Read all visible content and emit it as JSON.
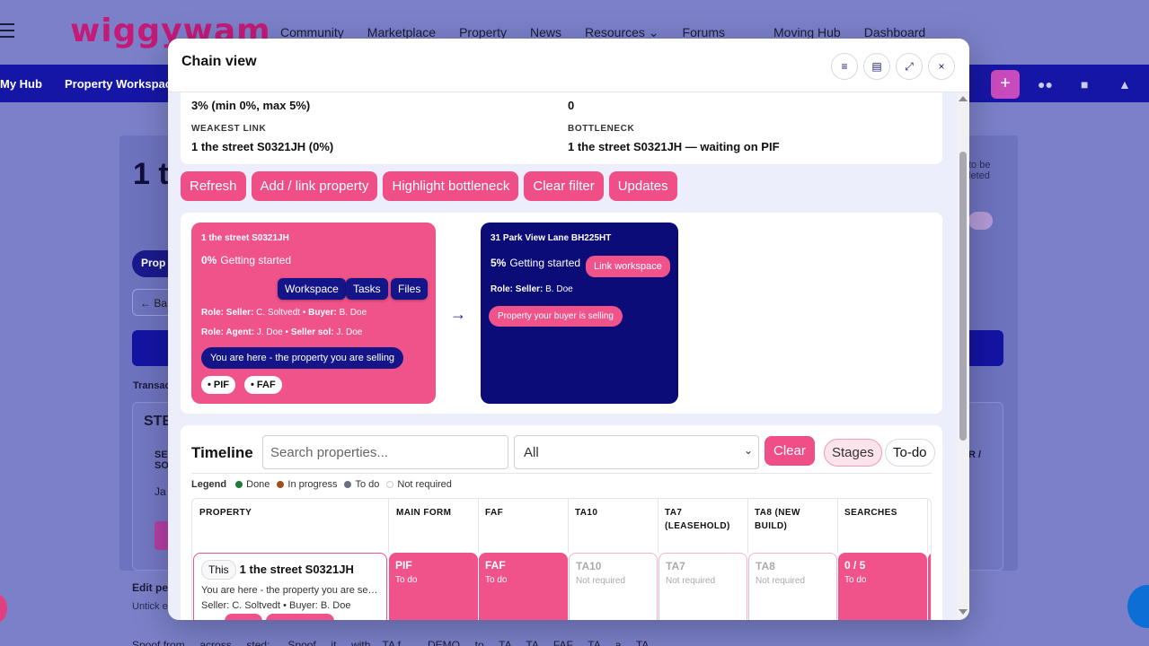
{
  "site": {
    "logo": "wiggywam",
    "nav": [
      "Community",
      "Marketplace",
      "Property",
      "News",
      "Resources ⌄",
      "Forums",
      "Moving Hub",
      "Dashboard"
    ],
    "subnav": [
      "My Hub",
      "Property Workspace"
    ],
    "bg_title": "1 t",
    "bg_pill": "Prop",
    "bg_back": "← Ba",
    "bg_trans": "Transac",
    "bg_stage": "STE",
    "bg_stage_l1": "SE\nSO",
    "bg_stage_l2": "Ja",
    "bg_right": "to be\nleted",
    "bg_right2": "R /",
    "bg_edit": "Edit pe",
    "bg_untick": "Untick e",
    "bg_footer": "Spoof from ... across ... sted: .... Spoof ... it ... with .. TA f.... ... DEMO ... to ... TA ... TA ... FAF ... TA ... a ... TA... ... ..."
  },
  "modal": {
    "title": "Chain view",
    "header_buttons": [
      "menu-icon",
      "print-icon",
      "expand-icon",
      "close-icon"
    ],
    "stats": {
      "top_left": "3% (min 0%, max 5%)",
      "top_right": "0",
      "weakest_label": "WEAKEST LINK",
      "weakest_value": "1 the street S0321JH (0%)",
      "bottleneck_label": "BOTTLENECK",
      "bottleneck_value": "1 the street S0321JH — waiting on PIF"
    },
    "actions": [
      "Refresh",
      "Add / link property",
      "Highlight bottleneck",
      "Clear filter",
      "Updates"
    ],
    "chain": {
      "arrow": "→",
      "node1": {
        "address": "1 the street S0321JH",
        "progress_pct": "0%",
        "progress_text": "Getting started",
        "buttons": [
          "Workspace",
          "Tasks",
          "Files"
        ],
        "role1_label": "Role: Seller:",
        "role1_value": " C. Soltvedt • ",
        "role1b_label": "Buyer:",
        "role1b_value": " B. Doe",
        "role2_label": "Role: Agent:",
        "role2_value": " J. Doe • ",
        "role2b_label": "Seller sol:",
        "role2b_value": " J. Doe",
        "here": "You are here - the property you are selling",
        "tags": [
          "• PIF",
          "• FAF"
        ]
      },
      "node2": {
        "address": "31 Park View Lane BH225HT",
        "progress_pct": "5%",
        "progress_text": "Getting started",
        "link_button": "Link workspace",
        "role_label": "Role: Seller:",
        "role_value": " B. Doe",
        "pill": "Property your buyer is selling"
      }
    },
    "timeline": {
      "title": "Timeline",
      "search_placeholder": "Search properties...",
      "filter_value": "All",
      "clear": "Clear",
      "stages": "Stages",
      "todo": "To-do",
      "legend_label": "Legend",
      "legend": [
        {
          "label": "Done",
          "color": "#1f7a3a"
        },
        {
          "label": "In progress",
          "color": "#a0521c"
        },
        {
          "label": "To do",
          "color": "#6b6f80"
        },
        {
          "label": "Not required",
          "color": "#ffffff"
        }
      ],
      "columns": [
        "PROPERTY",
        "MAIN FORM",
        "FAF",
        "TA10",
        "TA7\n(LEASEHOLD)",
        "TA8 (NEW\nBUILD)",
        "SEARCHES"
      ],
      "row": {
        "this": "This",
        "address": "1 the street S0321JH",
        "line1": "You are here - the property you are selling",
        "line2": "Seller: C. Soltvedt • Buyer: B. Doe",
        "cells": [
          {
            "name": "PIF",
            "status": "To do",
            "state": "todo"
          },
          {
            "name": "FAF",
            "status": "To do",
            "state": "todo"
          },
          {
            "name": "TA10",
            "status": "Not required",
            "state": "nr"
          },
          {
            "name": "TA7",
            "status": "Not required",
            "state": "nr"
          },
          {
            "name": "TA8",
            "status": "Not required",
            "state": "nr"
          },
          {
            "name": "0 / 5",
            "status": "To do",
            "state": "todo"
          }
        ]
      }
    }
  }
}
